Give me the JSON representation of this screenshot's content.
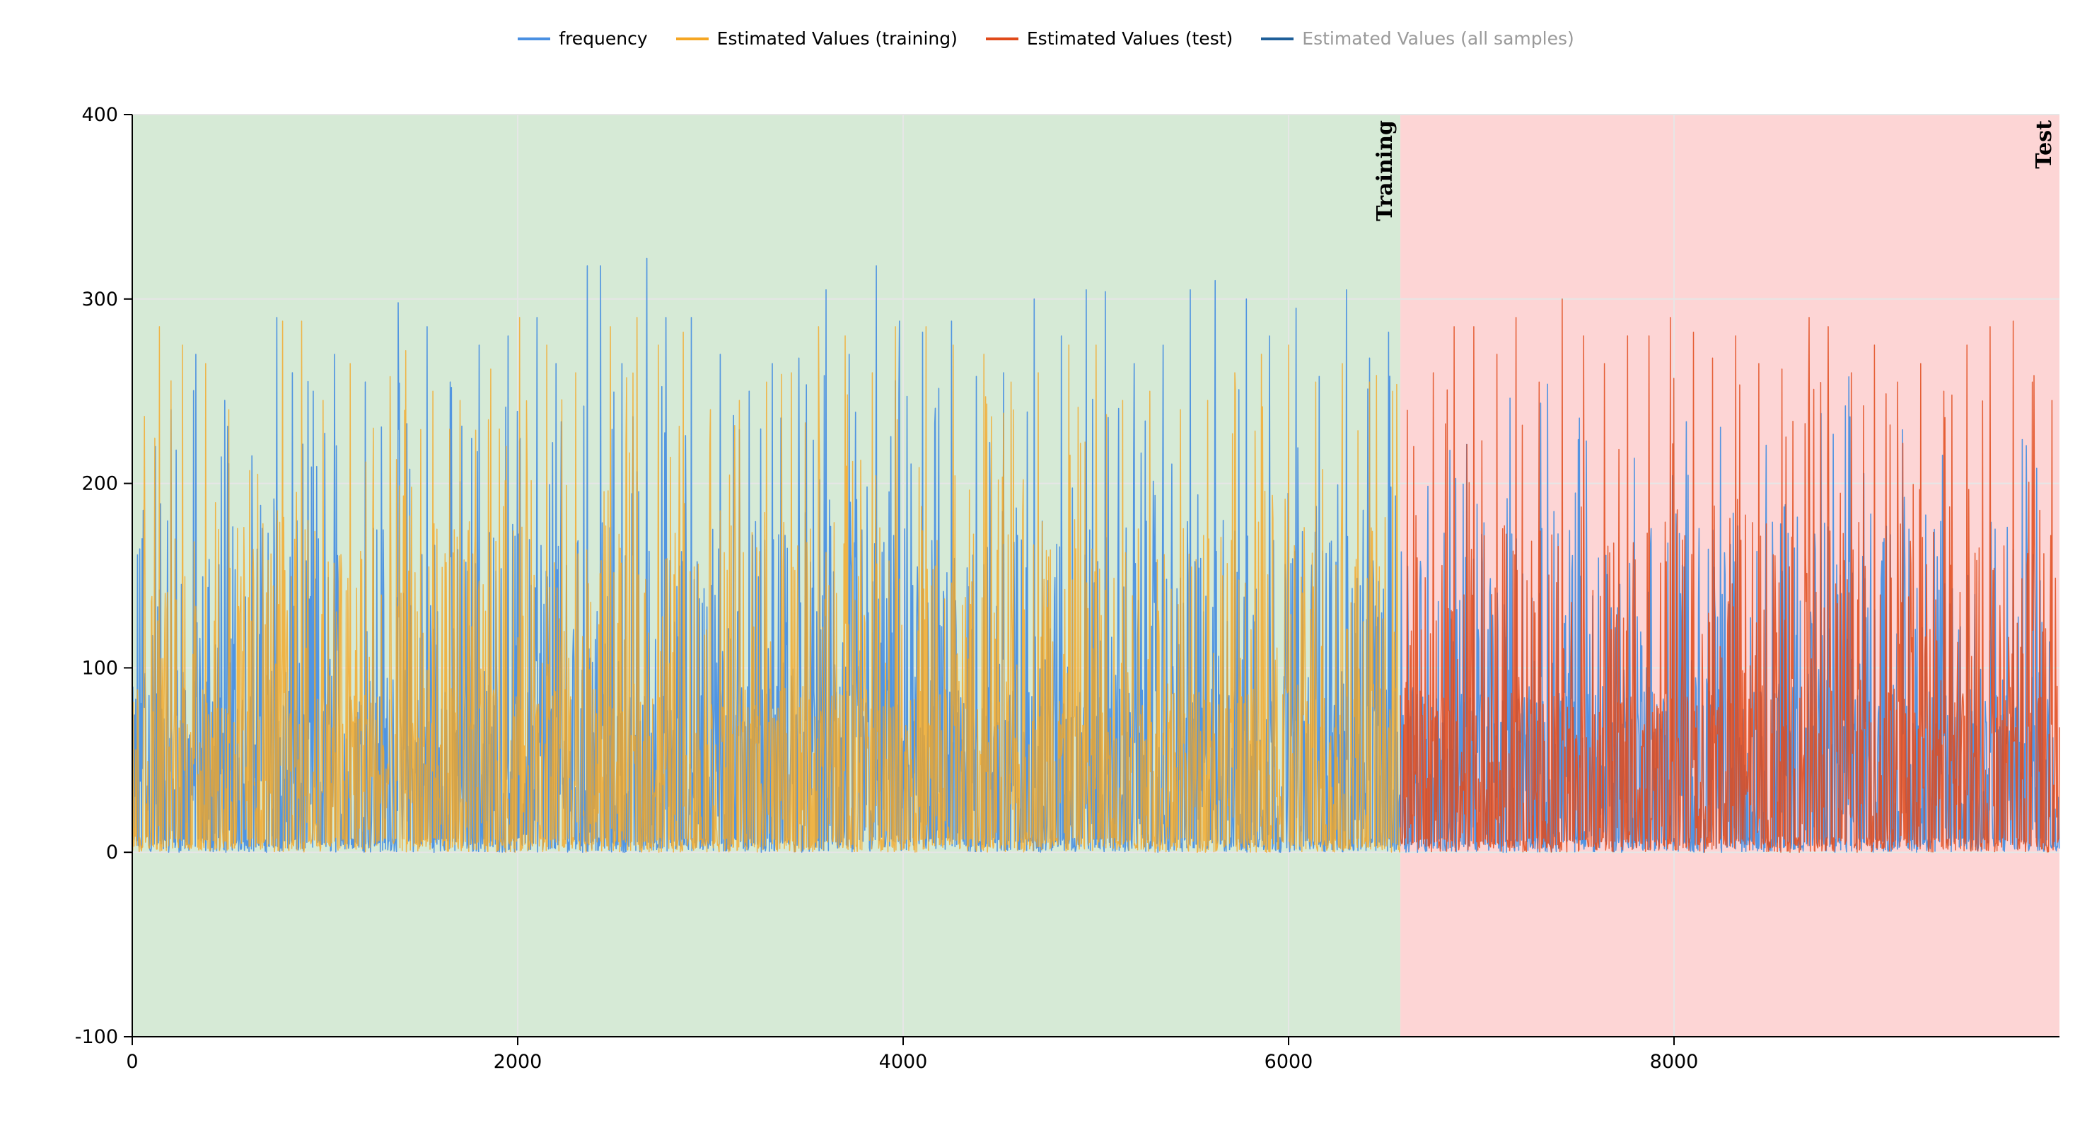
{
  "legend": [
    {
      "label": "frequency",
      "color": "#4a90e2",
      "muted": false
    },
    {
      "label": "Estimated Values (training)",
      "color": "#f5a623",
      "muted": false
    },
    {
      "label": "Estimated Values (test)",
      "color": "#e04a1a",
      "muted": false
    },
    {
      "label": "Estimated Values (all samples)",
      "color": "#1f5f99",
      "muted": true
    }
  ],
  "colors": {
    "training_bg": "#d6ead6",
    "test_bg": "#fdd5d5",
    "frequency": "#4a90e2",
    "training": "#f5a623",
    "test": "#e04a1a",
    "grid": "#e6e6e6"
  },
  "chart_data": {
    "type": "line",
    "xlim": [
      0,
      10000
    ],
    "ylim": [
      -100,
      400
    ],
    "xticks": [
      0,
      2000,
      4000,
      6000,
      8000
    ],
    "yticks": [
      -100,
      0,
      100,
      200,
      300,
      400
    ],
    "x_tick_labels": [
      "0",
      "2000",
      "4000",
      "6000",
      "8000"
    ],
    "y_tick_labels": [
      "-100",
      "0",
      "100",
      "200",
      "300",
      "400"
    ],
    "grid": true,
    "legend_position": "top-center",
    "regions": [
      {
        "label": "Training",
        "x_start": 0,
        "x_end": 6580
      },
      {
        "label": "Test",
        "x_start": 6580,
        "x_end": 10000
      }
    ],
    "series": [
      {
        "name": "frequency",
        "x_start": 0,
        "x_end": 10000,
        "peaks": [
          [
            50,
            170
          ],
          [
            120,
            220
          ],
          [
            200,
            240
          ],
          [
            330,
            270
          ],
          [
            480,
            245
          ],
          [
            620,
            215
          ],
          [
            750,
            290
          ],
          [
            830,
            260
          ],
          [
            940,
            250
          ],
          [
            1050,
            270
          ],
          [
            1210,
            255
          ],
          [
            1380,
            298
          ],
          [
            1530,
            285
          ],
          [
            1650,
            255
          ],
          [
            1800,
            275
          ],
          [
            1950,
            280
          ],
          [
            2100,
            290
          ],
          [
            2200,
            265
          ],
          [
            2360,
            318
          ],
          [
            2430,
            318
          ],
          [
            2540,
            265
          ],
          [
            2670,
            322
          ],
          [
            2770,
            290
          ],
          [
            2900,
            290
          ],
          [
            3050,
            270
          ],
          [
            3200,
            250
          ],
          [
            3320,
            265
          ],
          [
            3460,
            268
          ],
          [
            3600,
            305
          ],
          [
            3720,
            270
          ],
          [
            3860,
            318
          ],
          [
            3980,
            288
          ],
          [
            4100,
            282
          ],
          [
            4250,
            288
          ],
          [
            4380,
            258
          ],
          [
            4520,
            260
          ],
          [
            4680,
            300
          ],
          [
            4820,
            280
          ],
          [
            4950,
            305
          ],
          [
            5050,
            304
          ],
          [
            5200,
            265
          ],
          [
            5350,
            275
          ],
          [
            5490,
            305
          ],
          [
            5620,
            310
          ],
          [
            5780,
            300
          ],
          [
            5900,
            280
          ],
          [
            6040,
            295
          ],
          [
            6160,
            258
          ],
          [
            6300,
            305
          ],
          [
            6420,
            268
          ],
          [
            6520,
            282
          ]
        ]
      },
      {
        "name": "Estimated Values (training)",
        "x_start": 0,
        "x_end": 6580,
        "peaks": [
          [
            60,
            150
          ],
          [
            140,
            285
          ],
          [
            260,
            275
          ],
          [
            380,
            265
          ],
          [
            500,
            240
          ],
          [
            650,
            205
          ],
          [
            780,
            288
          ],
          [
            880,
            288
          ],
          [
            990,
            245
          ],
          [
            1130,
            265
          ],
          [
            1250,
            230
          ],
          [
            1420,
            272
          ],
          [
            1560,
            250
          ],
          [
            1700,
            245
          ],
          [
            1860,
            262
          ],
          [
            2010,
            290
          ],
          [
            2150,
            275
          ],
          [
            2300,
            260
          ],
          [
            2480,
            285
          ],
          [
            2620,
            290
          ],
          [
            2730,
            275
          ],
          [
            2860,
            282
          ],
          [
            3000,
            240
          ],
          [
            3150,
            245
          ],
          [
            3290,
            255
          ],
          [
            3420,
            260
          ],
          [
            3560,
            285
          ],
          [
            3700,
            280
          ],
          [
            3840,
            260
          ],
          [
            3960,
            285
          ],
          [
            4120,
            285
          ],
          [
            4260,
            275
          ],
          [
            4420,
            270
          ],
          [
            4560,
            255
          ],
          [
            4700,
            260
          ],
          [
            4860,
            275
          ],
          [
            5000,
            275
          ],
          [
            5140,
            245
          ],
          [
            5280,
            250
          ],
          [
            5440,
            240
          ],
          [
            5580,
            245
          ],
          [
            5720,
            260
          ],
          [
            5860,
            270
          ],
          [
            6000,
            275
          ],
          [
            6140,
            255
          ],
          [
            6280,
            265
          ],
          [
            6420,
            255
          ],
          [
            6540,
            250
          ]
        ]
      },
      {
        "name": "Estimated Values (test)",
        "x_start": 6580,
        "x_end": 10000,
        "peaks": [
          [
            6650,
            220
          ],
          [
            6750,
            260
          ],
          [
            6860,
            285
          ],
          [
            6960,
            285
          ],
          [
            7080,
            270
          ],
          [
            7180,
            290
          ],
          [
            7300,
            255
          ],
          [
            7420,
            300
          ],
          [
            7530,
            280
          ],
          [
            7640,
            265
          ],
          [
            7760,
            280
          ],
          [
            7870,
            280
          ],
          [
            7980,
            290
          ],
          [
            8100,
            282
          ],
          [
            8200,
            268
          ],
          [
            8320,
            280
          ],
          [
            8440,
            265
          ],
          [
            8560,
            262
          ],
          [
            8700,
            290
          ],
          [
            8800,
            285
          ],
          [
            8920,
            260
          ],
          [
            9040,
            275
          ],
          [
            9160,
            255
          ],
          [
            9280,
            265
          ],
          [
            9400,
            250
          ],
          [
            9520,
            275
          ],
          [
            9640,
            285
          ],
          [
            9760,
            288
          ],
          [
            9860,
            255
          ],
          [
            9960,
            245
          ]
        ]
      }
    ]
  }
}
